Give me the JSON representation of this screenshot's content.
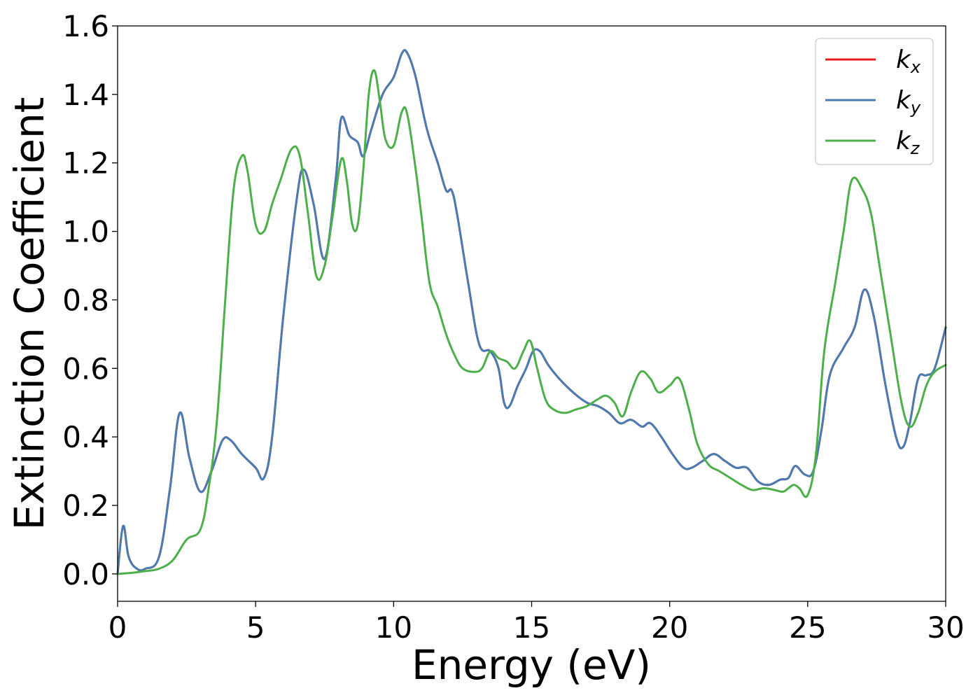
{
  "chart_data": {
    "type": "line",
    "title": "",
    "xlabel": "Energy (eV)",
    "ylabel": "Extinction Coefficient",
    "xlim": [
      0,
      30
    ],
    "ylim": [
      -0.08,
      1.6
    ],
    "xticks": [
      0,
      5,
      10,
      15,
      20,
      25,
      30
    ],
    "xtick_labels": [
      "0",
      "5",
      "10",
      "15",
      "20",
      "25",
      "30"
    ],
    "yticks": [
      0.0,
      0.2,
      0.4,
      0.6,
      0.8,
      1.0,
      1.2,
      1.4,
      1.6
    ],
    "ytick_labels": [
      "0.0",
      "0.2",
      "0.4",
      "0.6",
      "0.8",
      "1.0",
      "1.2",
      "1.4",
      "1.6"
    ],
    "grid": false,
    "legend_position": "top-right",
    "series": [
      {
        "name": "k_x",
        "legend_base": "k",
        "legend_sub": "x",
        "color": "#e41a1c",
        "x": [
          0,
          0.2,
          0.4,
          0.7,
          1.0,
          1.5,
          1.9,
          2.25,
          2.6,
          3.0,
          3.4,
          3.8,
          4.1,
          4.5,
          5.0,
          5.3,
          5.6,
          6.0,
          6.5,
          6.75,
          7.1,
          7.5,
          7.9,
          8.1,
          8.4,
          8.7,
          8.9,
          9.2,
          9.6,
          10.0,
          10.3,
          10.5,
          10.8,
          11.2,
          11.6,
          11.9,
          12.1,
          12.3,
          12.7,
          13.1,
          13.5,
          13.8,
          14.0,
          14.2,
          14.5,
          14.8,
          15.05,
          15.3,
          15.6,
          16.0,
          16.5,
          17.0,
          17.4,
          17.8,
          18.2,
          18.6,
          19.0,
          19.3,
          19.7,
          20.1,
          20.5,
          20.8,
          21.2,
          21.6,
          22.0,
          22.4,
          22.8,
          23.2,
          23.6,
          24.0,
          24.3,
          24.55,
          24.9,
          25.2,
          25.5,
          25.8,
          26.3,
          26.7,
          27.05,
          27.4,
          27.8,
          28.2,
          28.45,
          28.7,
          29.0,
          29.3,
          29.6,
          30.0
        ],
        "y": [
          0.0,
          0.14,
          0.05,
          0.015,
          0.015,
          0.05,
          0.25,
          0.47,
          0.34,
          0.24,
          0.3,
          0.39,
          0.39,
          0.35,
          0.31,
          0.28,
          0.4,
          0.75,
          1.1,
          1.18,
          1.08,
          0.92,
          1.15,
          1.33,
          1.28,
          1.26,
          1.22,
          1.3,
          1.4,
          1.45,
          1.52,
          1.52,
          1.45,
          1.3,
          1.2,
          1.12,
          1.12,
          1.05,
          0.85,
          0.67,
          0.65,
          0.6,
          0.5,
          0.49,
          0.55,
          0.6,
          0.65,
          0.65,
          0.61,
          0.57,
          0.53,
          0.5,
          0.49,
          0.47,
          0.44,
          0.45,
          0.43,
          0.44,
          0.4,
          0.35,
          0.31,
          0.31,
          0.33,
          0.35,
          0.33,
          0.31,
          0.31,
          0.27,
          0.26,
          0.275,
          0.28,
          0.315,
          0.29,
          0.3,
          0.42,
          0.58,
          0.66,
          0.72,
          0.83,
          0.75,
          0.56,
          0.4,
          0.37,
          0.44,
          0.57,
          0.58,
          0.6,
          0.72
        ]
      },
      {
        "name": "k_y",
        "legend_base": "k",
        "legend_sub": "y",
        "color": "#4a7cb4",
        "x": [
          0,
          0.2,
          0.4,
          0.7,
          1.0,
          1.5,
          1.9,
          2.25,
          2.6,
          3.0,
          3.4,
          3.8,
          4.1,
          4.5,
          5.0,
          5.3,
          5.6,
          6.0,
          6.5,
          6.75,
          7.1,
          7.5,
          7.9,
          8.1,
          8.4,
          8.7,
          8.9,
          9.2,
          9.6,
          10.0,
          10.3,
          10.5,
          10.8,
          11.2,
          11.6,
          11.9,
          12.1,
          12.3,
          12.7,
          13.1,
          13.5,
          13.8,
          14.0,
          14.2,
          14.5,
          14.8,
          15.05,
          15.3,
          15.6,
          16.0,
          16.5,
          17.0,
          17.4,
          17.8,
          18.2,
          18.6,
          19.0,
          19.3,
          19.7,
          20.1,
          20.5,
          20.8,
          21.2,
          21.6,
          22.0,
          22.4,
          22.8,
          23.2,
          23.6,
          24.0,
          24.3,
          24.55,
          24.9,
          25.2,
          25.5,
          25.8,
          26.3,
          26.7,
          27.05,
          27.4,
          27.8,
          28.2,
          28.45,
          28.7,
          29.0,
          29.3,
          29.6,
          30.0
        ],
        "y": [
          0.0,
          0.14,
          0.05,
          0.015,
          0.015,
          0.05,
          0.25,
          0.47,
          0.34,
          0.24,
          0.3,
          0.39,
          0.39,
          0.35,
          0.31,
          0.28,
          0.4,
          0.75,
          1.1,
          1.18,
          1.08,
          0.92,
          1.15,
          1.33,
          1.28,
          1.26,
          1.22,
          1.3,
          1.4,
          1.45,
          1.52,
          1.52,
          1.45,
          1.3,
          1.2,
          1.12,
          1.12,
          1.05,
          0.85,
          0.67,
          0.65,
          0.6,
          0.5,
          0.49,
          0.55,
          0.6,
          0.65,
          0.65,
          0.61,
          0.57,
          0.53,
          0.5,
          0.49,
          0.47,
          0.44,
          0.45,
          0.43,
          0.44,
          0.4,
          0.35,
          0.31,
          0.31,
          0.33,
          0.35,
          0.33,
          0.31,
          0.31,
          0.27,
          0.26,
          0.275,
          0.28,
          0.315,
          0.29,
          0.3,
          0.42,
          0.58,
          0.66,
          0.72,
          0.83,
          0.75,
          0.56,
          0.4,
          0.37,
          0.44,
          0.57,
          0.58,
          0.6,
          0.72
        ]
      },
      {
        "name": "k_z",
        "legend_base": "k",
        "legend_sub": "z",
        "color": "#4daf4a",
        "x": [
          0,
          0.5,
          1.0,
          1.5,
          2.0,
          2.5,
          3.0,
          3.3,
          3.6,
          3.9,
          4.2,
          4.5,
          4.7,
          5.0,
          5.3,
          5.6,
          5.9,
          6.3,
          6.6,
          6.9,
          7.2,
          7.5,
          7.8,
          8.1,
          8.3,
          8.5,
          8.7,
          8.9,
          9.1,
          9.3,
          9.5,
          9.7,
          10.0,
          10.3,
          10.5,
          10.8,
          11.0,
          11.3,
          11.6,
          11.9,
          12.2,
          12.5,
          12.9,
          13.2,
          13.5,
          13.8,
          14.1,
          14.4,
          14.7,
          14.95,
          15.2,
          15.5,
          15.8,
          16.2,
          16.6,
          17.0,
          17.4,
          17.7,
          18.0,
          18.3,
          18.6,
          18.95,
          19.3,
          19.6,
          20.0,
          20.35,
          20.7,
          21.0,
          21.4,
          21.8,
          22.2,
          22.6,
          23.0,
          23.4,
          23.8,
          24.1,
          24.3,
          24.5,
          24.7,
          25.0,
          25.3,
          25.6,
          26.0,
          26.3,
          26.6,
          27.0,
          27.3,
          27.6,
          28.0,
          28.4,
          28.7,
          29.0,
          29.3,
          29.6,
          30.0
        ],
        "y": [
          0.0,
          0.003,
          0.008,
          0.015,
          0.04,
          0.1,
          0.13,
          0.25,
          0.45,
          0.8,
          1.12,
          1.22,
          1.18,
          1.02,
          1.0,
          1.08,
          1.15,
          1.24,
          1.22,
          1.05,
          0.87,
          0.9,
          1.05,
          1.21,
          1.15,
          1.02,
          1.02,
          1.18,
          1.4,
          1.47,
          1.38,
          1.27,
          1.25,
          1.35,
          1.34,
          1.18,
          1.05,
          0.85,
          0.78,
          0.7,
          0.64,
          0.6,
          0.59,
          0.6,
          0.65,
          0.63,
          0.62,
          0.6,
          0.65,
          0.68,
          0.6,
          0.51,
          0.48,
          0.47,
          0.48,
          0.49,
          0.51,
          0.52,
          0.5,
          0.46,
          0.53,
          0.59,
          0.57,
          0.53,
          0.55,
          0.57,
          0.48,
          0.38,
          0.32,
          0.3,
          0.28,
          0.26,
          0.245,
          0.25,
          0.245,
          0.24,
          0.25,
          0.26,
          0.25,
          0.23,
          0.35,
          0.65,
          0.85,
          1.0,
          1.15,
          1.12,
          1.05,
          0.9,
          0.7,
          0.5,
          0.43,
          0.47,
          0.55,
          0.59,
          0.61
        ]
      }
    ]
  }
}
